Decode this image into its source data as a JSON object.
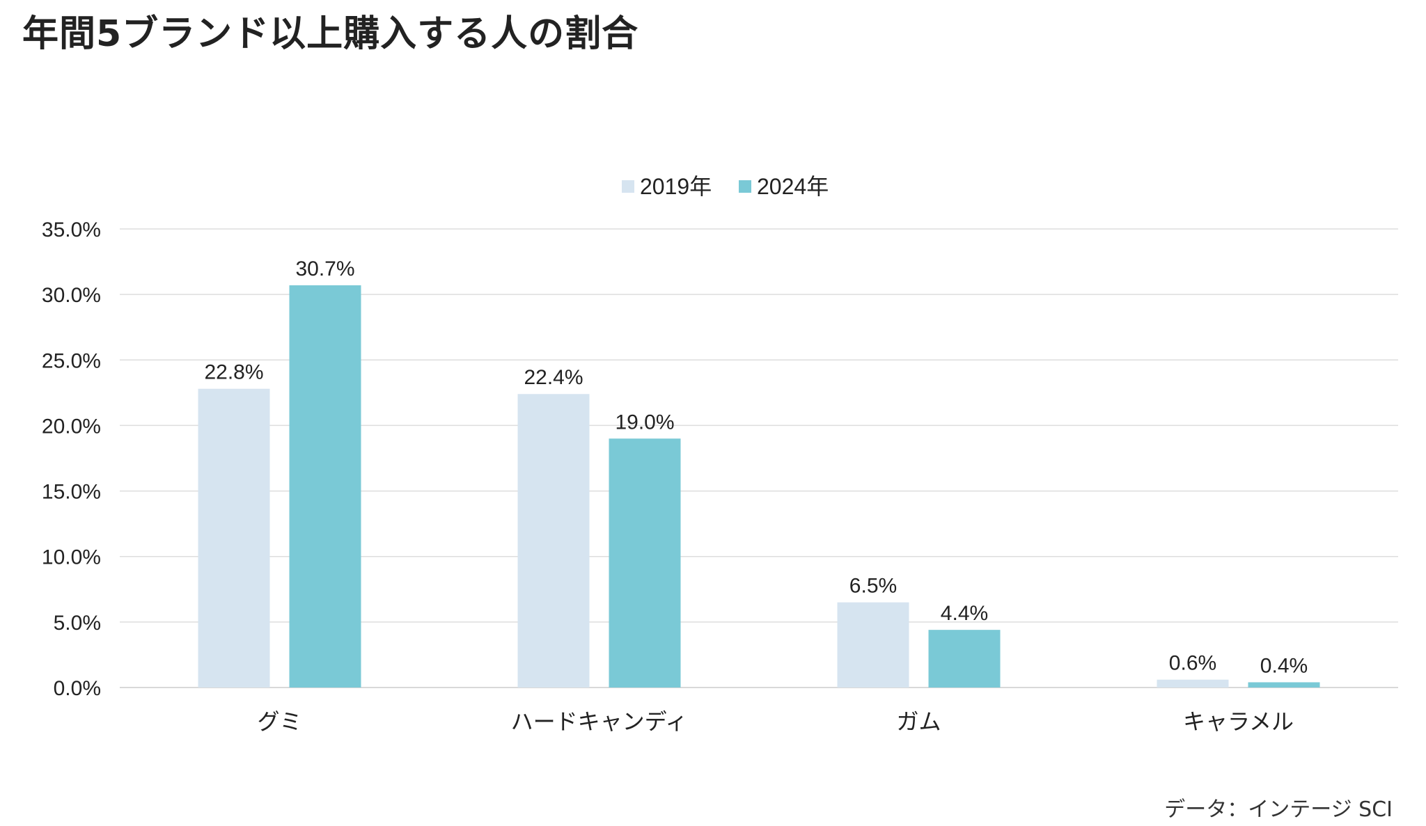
{
  "title": "年間5ブランド以上購入する人の割合",
  "source": "データ：インテージ SCI",
  "colors": {
    "series_2019": "#d6e4f0",
    "series_2024": "#7ac9d6",
    "grid": "#dddddd",
    "text": "#222222"
  },
  "chart_data": {
    "type": "bar",
    "categories": [
      "グミ",
      "ハードキャンディ",
      "ガム",
      "キャラメル"
    ],
    "series": [
      {
        "name": "2019年",
        "values": [
          22.8,
          22.4,
          6.5,
          0.6
        ],
        "labels": [
          "22.8%",
          "22.4%",
          "6.5%",
          "0.6%"
        ]
      },
      {
        "name": "2024年",
        "values": [
          30.7,
          19.0,
          4.4,
          0.4
        ],
        "labels": [
          "30.7%",
          "19.0%",
          "4.4%",
          "0.4%"
        ]
      }
    ],
    "yticks": [
      "0.0%",
      "5.0%",
      "10.0%",
      "15.0%",
      "20.0%",
      "25.0%",
      "30.0%",
      "35.0%"
    ],
    "ylim": [
      0,
      35
    ],
    "grid": true,
    "legend_position": "top-center"
  }
}
